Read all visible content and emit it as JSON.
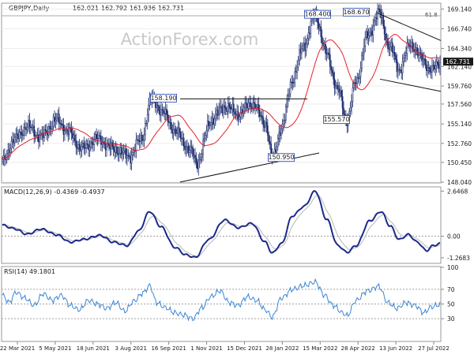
{
  "chart_data": [
    {
      "type": "candlestick",
      "symbol": "GBPJPY,Daily",
      "ohlc": [
        "162.021",
        "162.792",
        "161.936",
        "162.731"
      ],
      "watermark": "ActionForex.com",
      "last_price": "162.731",
      "fib_label": "61.8",
      "ylim": [
        148.04,
        169.76
      ],
      "y_ticks": [
        "169.140",
        "166.740",
        "164.340",
        "162.140",
        "159.760",
        "157.560",
        "155.140",
        "152.760",
        "150.450",
        "148.040"
      ],
      "x_ticks": [
        "22 Mar 2021",
        "5 May 2021",
        "18 Jun 2021",
        "3 Aug 2021",
        "16 Sep 2021",
        "1 Nov 2021",
        "15 Dec 2021",
        "28 Jan 2022",
        "15 Mar 2022",
        "28 Apr 2022",
        "13 Jun 2022",
        "27 Jul 2022"
      ],
      "ma_series": {
        "name": "",
        "color": "#e8202a"
      },
      "candle_color": "#1b2b6b",
      "anchors": [
        [
          0,
          150.5
        ],
        [
          10,
          153.2
        ],
        [
          22,
          154.8
        ],
        [
          34,
          153.6
        ],
        [
          48,
          155.6
        ],
        [
          58,
          154.2
        ],
        [
          70,
          152.1
        ],
        [
          84,
          153.3
        ],
        [
          98,
          152.1
        ],
        [
          112,
          151.2
        ],
        [
          122,
          153.2
        ],
        [
          132,
          158.19
        ],
        [
          142,
          156.4
        ],
        [
          154,
          154.0
        ],
        [
          166,
          151.8
        ],
        [
          172,
          150.5
        ],
        [
          184,
          155.6
        ],
        [
          196,
          157.3
        ],
        [
          208,
          156.4
        ],
        [
          220,
          157.7
        ],
        [
          232,
          155.3
        ],
        [
          238,
          150.95
        ],
        [
          246,
          154.6
        ],
        [
          256,
          160.6
        ],
        [
          266,
          164.8
        ],
        [
          276,
          168.4
        ],
        [
          286,
          163.6
        ],
        [
          296,
          159.2
        ],
        [
          304,
          155.57
        ],
        [
          312,
          160.4
        ],
        [
          322,
          165.8
        ],
        [
          332,
          168.67
        ],
        [
          342,
          164.4
        ],
        [
          350,
          161.8
        ],
        [
          360,
          164.9
        ],
        [
          370,
          163.1
        ],
        [
          378,
          161.6
        ],
        [
          386,
          162.73
        ]
      ],
      "annotations": [
        {
          "label": "168.400",
          "value": 168.4
        },
        {
          "label": "168.670",
          "value": 168.67
        },
        {
          "label": "158.190",
          "value": 158.19
        },
        {
          "label": "155.570",
          "value": 155.57
        },
        {
          "label": "150.950",
          "value": 150.95
        }
      ]
    },
    {
      "type": "line",
      "title": "MACD(12,26,9) -0.4369 -0.4937",
      "ylim": [
        -1.55,
        2.85
      ],
      "y_ticks": [
        "2.6468",
        "0.00",
        "-1.2683"
      ],
      "series": [
        {
          "name": "MACD",
          "color": "#1b2a8a"
        },
        {
          "name": "Signal",
          "color": "#b7b7b7"
        }
      ],
      "anchors": [
        [
          0,
          0.65
        ],
        [
          10,
          0.45
        ],
        [
          22,
          0.12
        ],
        [
          34,
          0.42
        ],
        [
          48,
          0.08
        ],
        [
          60,
          -0.35
        ],
        [
          72,
          -0.18
        ],
        [
          86,
          0.05
        ],
        [
          98,
          -0.35
        ],
        [
          110,
          -0.55
        ],
        [
          120,
          0.3
        ],
        [
          130,
          1.45
        ],
        [
          140,
          0.55
        ],
        [
          152,
          -0.65
        ],
        [
          162,
          -1.1
        ],
        [
          170,
          -1.25
        ],
        [
          182,
          -0.2
        ],
        [
          196,
          0.95
        ],
        [
          208,
          0.5
        ],
        [
          220,
          0.75
        ],
        [
          232,
          -0.35
        ],
        [
          238,
          -1.0
        ],
        [
          246,
          -0.45
        ],
        [
          256,
          1.2
        ],
        [
          266,
          1.75
        ],
        [
          276,
          2.65
        ],
        [
          286,
          1.0
        ],
        [
          296,
          -0.55
        ],
        [
          304,
          -0.95
        ],
        [
          312,
          -0.55
        ],
        [
          324,
          0.9
        ],
        [
          334,
          1.45
        ],
        [
          342,
          0.6
        ],
        [
          350,
          -0.2
        ],
        [
          358,
          0.1
        ],
        [
          366,
          -0.35
        ],
        [
          374,
          -0.85
        ],
        [
          380,
          -0.55
        ],
        [
          386,
          -0.44
        ]
      ]
    },
    {
      "type": "line",
      "title": "RSI(14) 49.1801",
      "ylim": [
        0,
        100
      ],
      "y_ticks": [
        "100",
        "70",
        "50",
        "30"
      ],
      "series": [
        {
          "name": "RSI",
          "color": "#3a86d4"
        }
      ],
      "anchors": [
        [
          0,
          62
        ],
        [
          6,
          52
        ],
        [
          12,
          66
        ],
        [
          20,
          58
        ],
        [
          28,
          48
        ],
        [
          36,
          64
        ],
        [
          44,
          55
        ],
        [
          52,
          62
        ],
        [
          60,
          48
        ],
        [
          68,
          42
        ],
        [
          76,
          55
        ],
        [
          84,
          50
        ],
        [
          92,
          44
        ],
        [
          100,
          52
        ],
        [
          108,
          40
        ],
        [
          116,
          54
        ],
        [
          124,
          65
        ],
        [
          130,
          75
        ],
        [
          136,
          52
        ],
        [
          144,
          45
        ],
        [
          152,
          38
        ],
        [
          160,
          35
        ],
        [
          168,
          30
        ],
        [
          176,
          45
        ],
        [
          184,
          60
        ],
        [
          192,
          68
        ],
        [
          200,
          52
        ],
        [
          208,
          48
        ],
        [
          216,
          60
        ],
        [
          224,
          55
        ],
        [
          232,
          42
        ],
        [
          238,
          32
        ],
        [
          246,
          58
        ],
        [
          256,
          70
        ],
        [
          266,
          75
        ],
        [
          276,
          80
        ],
        [
          284,
          62
        ],
        [
          292,
          48
        ],
        [
          300,
          38
        ],
        [
          304,
          34
        ],
        [
          312,
          55
        ],
        [
          322,
          68
        ],
        [
          332,
          74
        ],
        [
          340,
          52
        ],
        [
          348,
          44
        ],
        [
          356,
          52
        ],
        [
          364,
          48
        ],
        [
          372,
          38
        ],
        [
          378,
          46
        ],
        [
          386,
          49.2
        ]
      ]
    }
  ]
}
